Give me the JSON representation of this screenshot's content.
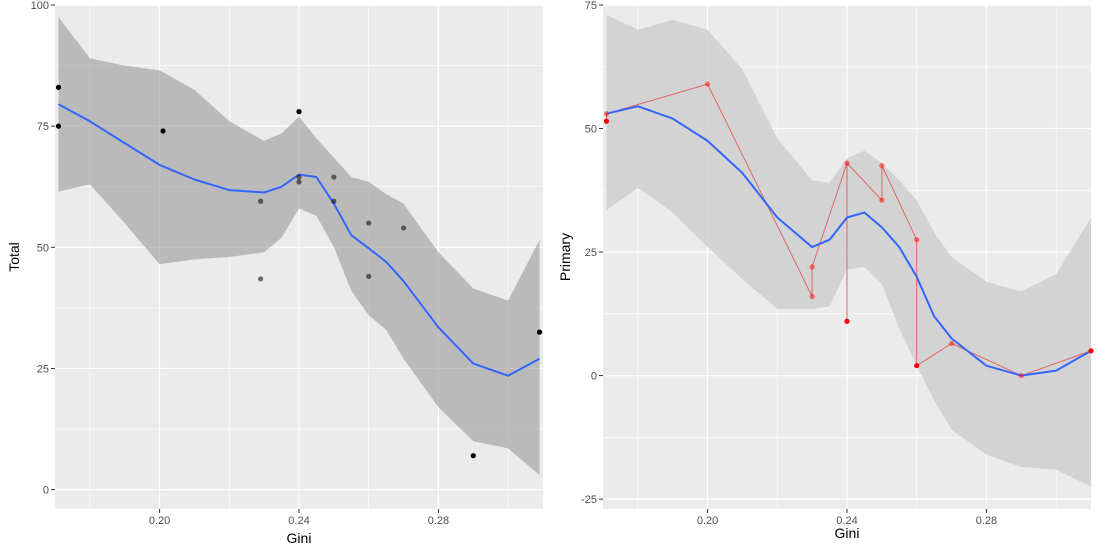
{
  "chart_data": [
    {
      "type": "scatter",
      "xlabel": "Gini",
      "ylabel": "Total",
      "xlim": [
        0.17,
        0.31
      ],
      "ylim": [
        -4,
        100
      ],
      "x_ticks": [
        0.2,
        0.24,
        0.28
      ],
      "x_tick_labels": [
        "0.20",
        "0.24",
        "0.28"
      ],
      "y_ticks": [
        0,
        25,
        50,
        75,
        100
      ],
      "y_tick_labels": [
        "0",
        "25",
        "50",
        "75",
        "100"
      ],
      "grid": true,
      "colors": {
        "panel": "#ebebeb",
        "grid": "#ffffff",
        "point": "#000000",
        "smooth": "#3366ff",
        "ribbon": "#999999"
      },
      "points": [
        {
          "x": 0.171,
          "y": 83
        },
        {
          "x": 0.171,
          "y": 75
        },
        {
          "x": 0.201,
          "y": 74
        },
        {
          "x": 0.229,
          "y": 59.5
        },
        {
          "x": 0.229,
          "y": 43.5
        },
        {
          "x": 0.24,
          "y": 78
        },
        {
          "x": 0.24,
          "y": 64.5
        },
        {
          "x": 0.24,
          "y": 63.5
        },
        {
          "x": 0.25,
          "y": 64.5
        },
        {
          "x": 0.25,
          "y": 59.5
        },
        {
          "x": 0.26,
          "y": 55
        },
        {
          "x": 0.26,
          "y": 44
        },
        {
          "x": 0.27,
          "y": 54
        },
        {
          "x": 0.29,
          "y": 7
        },
        {
          "x": 0.309,
          "y": 32.5
        }
      ],
      "smooth": {
        "x": [
          0.171,
          0.18,
          0.19,
          0.2,
          0.21,
          0.22,
          0.23,
          0.235,
          0.24,
          0.245,
          0.25,
          0.255,
          0.26,
          0.265,
          0.27,
          0.28,
          0.29,
          0.3,
          0.309
        ],
        "y": [
          79.5,
          76,
          71.5,
          67,
          64,
          61.8,
          61.3,
          62.5,
          65,
          64.5,
          59,
          52.5,
          49.8,
          47,
          43,
          33.5,
          26,
          23.5,
          27
        ],
        "lower": [
          61.5,
          63,
          55,
          46.5,
          47.5,
          48,
          49,
          52,
          58,
          56.5,
          50,
          41,
          36,
          33,
          27,
          17,
          10,
          8.5,
          3
        ],
        "upper": [
          97.5,
          89,
          87.5,
          86.5,
          82.5,
          76,
          72,
          73.5,
          77,
          72.5,
          68.5,
          64.5,
          63.5,
          61,
          59,
          49,
          41.5,
          39,
          51.5
        ]
      }
    },
    {
      "type": "scatter",
      "xlabel": "Gini",
      "ylabel": "Primary",
      "xlim": [
        0.17,
        0.31
      ],
      "ylim": [
        -27,
        75
      ],
      "x_ticks": [
        0.2,
        0.24,
        0.28
      ],
      "x_tick_labels": [
        "0.20",
        "0.24",
        "0.28"
      ],
      "y_ticks": [
        -25,
        0,
        25,
        50,
        75
      ],
      "y_tick_labels": [
        "-25",
        "0",
        "25",
        "50",
        "75"
      ],
      "grid": true,
      "colors": {
        "panel": "#ebebeb",
        "grid": "#ffffff",
        "point": "#ff0000",
        "path": "#e06666",
        "smooth": "#3366ff",
        "ribbon": "#cfcfcf"
      },
      "points": [
        {
          "x": 0.171,
          "y": 53,
          "alpha": 0.5
        },
        {
          "x": 0.171,
          "y": 51.5,
          "alpha": 1
        },
        {
          "x": 0.2,
          "y": 59,
          "alpha": 0.5
        },
        {
          "x": 0.23,
          "y": 22,
          "alpha": 0.5
        },
        {
          "x": 0.23,
          "y": 16,
          "alpha": 0.5
        },
        {
          "x": 0.24,
          "y": 43,
          "alpha": 0.5
        },
        {
          "x": 0.24,
          "y": 11,
          "alpha": 1
        },
        {
          "x": 0.25,
          "y": 42.5,
          "alpha": 0.5
        },
        {
          "x": 0.25,
          "y": 35.5,
          "alpha": 0.5
        },
        {
          "x": 0.26,
          "y": 27.5,
          "alpha": 0.5
        },
        {
          "x": 0.26,
          "y": 2,
          "alpha": 1
        },
        {
          "x": 0.27,
          "y": 6.5,
          "alpha": 0.5
        },
        {
          "x": 0.29,
          "y": 0,
          "alpha": 0.5
        },
        {
          "x": 0.31,
          "y": 5,
          "alpha": 1
        }
      ],
      "path": [
        {
          "x": 0.171,
          "y": 51.5
        },
        {
          "x": 0.171,
          "y": 53
        },
        {
          "x": 0.2,
          "y": 59
        },
        {
          "x": 0.23,
          "y": 16
        },
        {
          "x": 0.23,
          "y": 22
        },
        {
          "x": 0.24,
          "y": 43
        },
        {
          "x": 0.24,
          "y": 11
        },
        {
          "x": 0.24,
          "y": 43
        },
        {
          "x": 0.25,
          "y": 35.5
        },
        {
          "x": 0.25,
          "y": 42.5
        },
        {
          "x": 0.26,
          "y": 27.5
        },
        {
          "x": 0.26,
          "y": 2
        },
        {
          "x": 0.27,
          "y": 6.5
        },
        {
          "x": 0.29,
          "y": 0
        },
        {
          "x": 0.31,
          "y": 5
        }
      ],
      "smooth": {
        "x": [
          0.171,
          0.18,
          0.19,
          0.2,
          0.21,
          0.22,
          0.23,
          0.235,
          0.24,
          0.245,
          0.25,
          0.255,
          0.26,
          0.265,
          0.27,
          0.28,
          0.29,
          0.3,
          0.31
        ],
        "y": [
          53,
          54.5,
          52,
          47.5,
          41,
          32,
          26,
          27.5,
          32,
          33,
          30,
          26,
          20,
          12,
          7.5,
          2,
          0,
          1,
          5
        ],
        "lower": [
          33.5,
          38,
          33,
          26,
          19.5,
          13.5,
          13.5,
          14,
          21.5,
          22,
          18.5,
          9.5,
          2,
          -5,
          -11,
          -16,
          -18.5,
          -19,
          -22.5
        ],
        "upper": [
          73,
          70,
          72,
          70,
          62,
          48,
          39.5,
          39,
          44,
          45.5,
          43,
          39.5,
          35.5,
          29,
          24,
          19,
          17,
          20.5,
          32
        ]
      }
    }
  ]
}
